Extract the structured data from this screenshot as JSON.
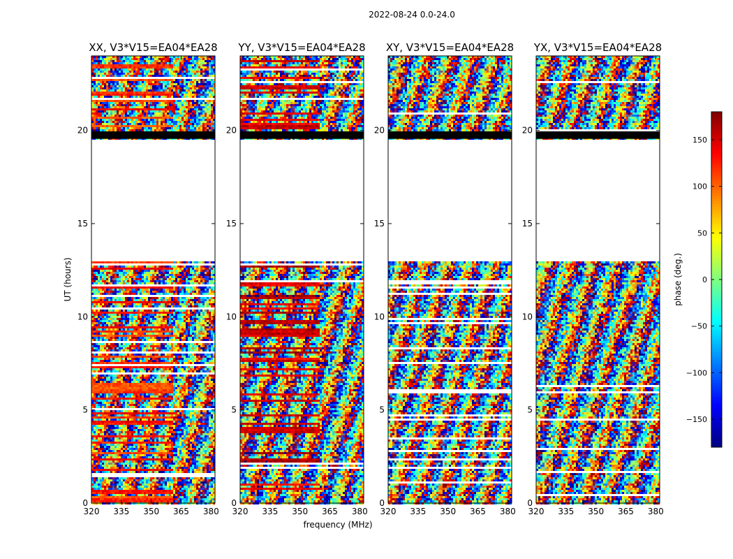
{
  "figure": {
    "suptitle": "2022-08-24 0.0-24.0",
    "xlabel": "frequency (MHz)",
    "ylabel": "UT (hours)",
    "colorbar_label": "phase (deg.)"
  },
  "chart_data": {
    "type": "heatmap",
    "title": "2022-08-24 0.0-24.0",
    "xlabel": "frequency (MHz)",
    "ylabel": "UT (hours)",
    "xlim": [
      320,
      382
    ],
    "ylim": [
      0,
      24
    ],
    "xticks": [
      320,
      335,
      350,
      365,
      380
    ],
    "yticks": [
      0,
      5,
      10,
      15,
      20
    ],
    "panels": [
      {
        "title": "XX, V3*V15=EA04*EA28",
        "coherent_phase_deg": 120,
        "coherent_until_mhz": 360
      },
      {
        "title": "YY, V3*V15=EA04*EA28",
        "coherent_phase_deg": 150,
        "coherent_until_mhz": 359
      },
      {
        "title": "XY, V3*V15=EA04*EA28",
        "coherent_phase_deg": null,
        "coherent_until_mhz": 0
      },
      {
        "title": "YX, V3*V15=EA04*EA28",
        "coherent_phase_deg": null,
        "coherent_until_mhz": 0
      }
    ],
    "data_gap_hours": [
      13.0,
      19.5
    ],
    "flagged_band_hours": [
      19.55,
      19.95
    ],
    "colorbar": {
      "label": "phase (deg.)",
      "range": [
        -180,
        180
      ],
      "ticks": [
        -150,
        -100,
        -50,
        0,
        50,
        100,
        150
      ],
      "colormap": "jet"
    }
  }
}
